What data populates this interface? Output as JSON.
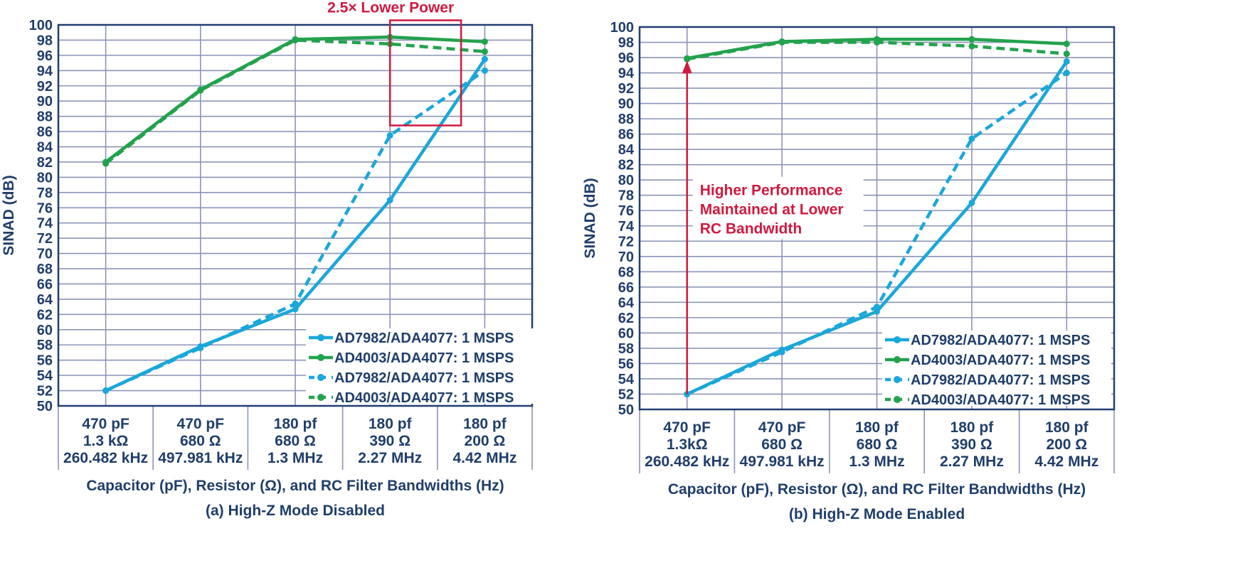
{
  "colors": {
    "cyan": "#1aa7d9",
    "green": "#23a24d",
    "text": "#1f3e6b",
    "grid": "#8c94b7",
    "frame": "#213f70",
    "annotation": "#d0193f"
  },
  "chart_data": [
    {
      "type": "line",
      "caption": "(a) High-Z Mode Disabled",
      "xlabel": "Capacitor (pF), Resistor (Ω), and RC Filter Bandwidths (Hz)",
      "ylabel": "SINAD (dB)",
      "ylim": [
        50,
        100
      ],
      "ytick_step": 2,
      "grid": true,
      "legend_position": "bottom-right",
      "categories": [
        [
          "470 pF",
          "1.3 kΩ",
          "260.482 kHz"
        ],
        [
          "470 pF",
          "680 Ω",
          "497.981 kHz"
        ],
        [
          "180 pf",
          "680 Ω",
          "1.3 MHz"
        ],
        [
          "180 pf",
          "390 Ω",
          "2.27 MHz"
        ],
        [
          "180 pf",
          "200 Ω",
          "4.42 MHz"
        ]
      ],
      "series": [
        {
          "name": "AD7982/ADA4077: 1 MSPS",
          "color": "cyan",
          "style": "solid",
          "values": [
            52,
            57.8,
            62.7,
            77,
            95.5
          ]
        },
        {
          "name": "AD4003/ADA4077: 1 MSPS",
          "color": "green",
          "style": "solid",
          "values": [
            82,
            91.5,
            98.1,
            98.4,
            97.8
          ]
        },
        {
          "name": "AD7982/ADA4077: 1 MSPS",
          "color": "cyan",
          "style": "dashed",
          "values": [
            52,
            57.6,
            63.4,
            85.5,
            94
          ]
        },
        {
          "name": "AD4003/ADA4077: 1 MSPS",
          "color": "green",
          "style": "dashed",
          "values": [
            81.8,
            91.4,
            98,
            97.5,
            96.5
          ]
        }
      ],
      "annotations": [
        {
          "text": "2.5× Lower Power",
          "kind": "highlight-box",
          "x_from": 3.5,
          "x_to": 4.25,
          "y_from": 86.8,
          "y_to": 100.6
        }
      ]
    },
    {
      "type": "line",
      "caption": "(b) High-Z Mode Enabled",
      "xlabel": "Capacitor (pF), Resistor (Ω), and RC Filter Bandwidths (Hz)",
      "ylabel": "SINAD (dB)",
      "ylim": [
        50,
        100
      ],
      "ytick_step": 2,
      "grid": true,
      "legend_position": "bottom-right",
      "categories": [
        [
          "470 pF",
          "1.3kΩ",
          "260.482 kHz"
        ],
        [
          "470 pF",
          "680 Ω",
          "497.981 kHz"
        ],
        [
          "180 pf",
          "680 Ω",
          "1.3 MHz"
        ],
        [
          "180 pf",
          "390 Ω",
          "2.27 MHz"
        ],
        [
          "180 pf",
          "200 Ω",
          "4.42 MHz"
        ]
      ],
      "series": [
        {
          "name": "AD7982/ADA4077: 1 MSPS",
          "color": "cyan",
          "style": "solid",
          "values": [
            52,
            57.8,
            62.8,
            77,
            95.5
          ]
        },
        {
          "name": "AD4003/ADA4077: 1 MSPS",
          "color": "green",
          "style": "solid",
          "values": [
            95.9,
            98.1,
            98.4,
            98.4,
            97.8
          ]
        },
        {
          "name": "AD7982/ADA4077: 1 MSPS",
          "color": "cyan",
          "style": "dashed",
          "values": [
            52,
            57.5,
            63.4,
            85.4,
            94
          ]
        },
        {
          "name": "AD4003/ADA4077: 1 MSPS",
          "color": "green",
          "style": "dashed",
          "values": [
            95.8,
            98,
            98,
            97.5,
            96.5
          ]
        }
      ],
      "annotations": [
        {
          "text": [
            "Higher Performance",
            "Maintained at Lower",
            "RC Bandwidth"
          ],
          "kind": "arrow",
          "x": 0,
          "y_from": 52,
          "y_to": 95.8
        }
      ]
    }
  ]
}
